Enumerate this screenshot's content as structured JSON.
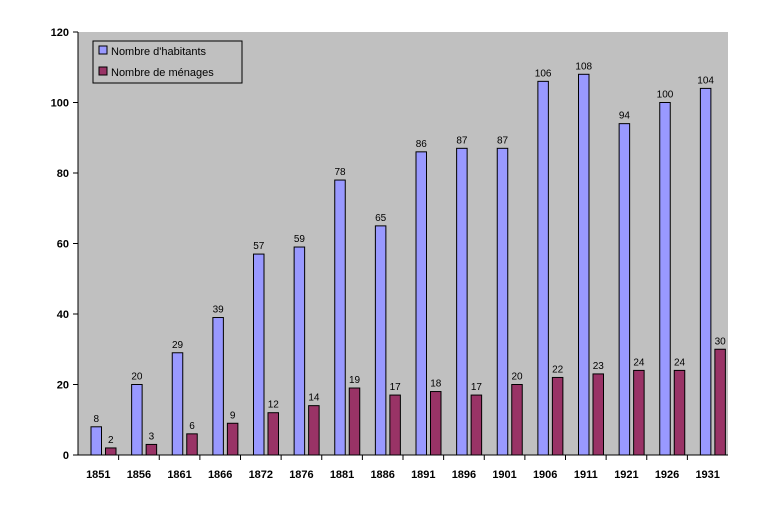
{
  "colors": {
    "plot_bg": "#c0c0c0",
    "series_1": "#9999ff",
    "series_2": "#993366",
    "axis": "#000000"
  },
  "chart_data": {
    "type": "bar",
    "categories": [
      "1851",
      "1856",
      "1861",
      "1866",
      "1872",
      "1876",
      "1881",
      "1886",
      "1891",
      "1896",
      "1901",
      "1906",
      "1911",
      "1921",
      "1926",
      "1931"
    ],
    "series": [
      {
        "name": "Nombre d'habitants",
        "values": [
          8,
          20,
          29,
          39,
          57,
          59,
          78,
          65,
          86,
          87,
          87,
          106,
          108,
          94,
          100,
          104
        ]
      },
      {
        "name": "Nombre de ménages",
        "values": [
          2,
          3,
          6,
          9,
          12,
          14,
          19,
          17,
          18,
          17,
          20,
          22,
          23,
          24,
          24,
          30
        ]
      }
    ],
    "ylim": [
      0,
      120
    ],
    "yticks": [
      0,
      20,
      40,
      60,
      80,
      100,
      120
    ],
    "grid": false,
    "legend": "top-left",
    "data_labels": true
  }
}
